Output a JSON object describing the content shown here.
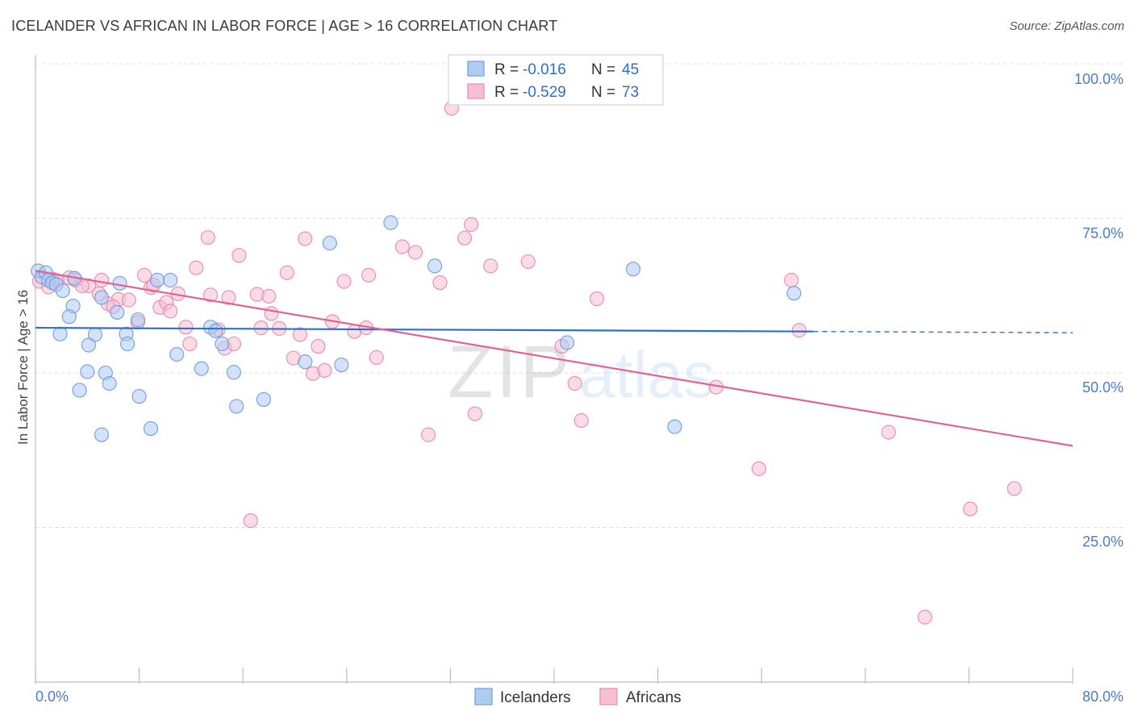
{
  "header": {
    "title": "ICELANDER VS AFRICAN IN LABOR FORCE | AGE > 16 CORRELATION CHART",
    "source": "Source: ZipAtlas.com"
  },
  "watermark": {
    "part1": "ZIP",
    "part2": "atlas"
  },
  "legend": {
    "rows": [
      {
        "r_label": "R =",
        "r_value": "-0.016",
        "n_label": "N =",
        "n_value": "45"
      },
      {
        "r_label": "R =",
        "r_value": "-0.529",
        "n_label": "N =",
        "n_value": "73"
      }
    ]
  },
  "bottom_legend": {
    "items": [
      "Icelanders",
      "Africans"
    ]
  },
  "colors": {
    "blue_fill": "#aecbf2",
    "blue_stroke": "#6f9ee0",
    "blue_line": "#2e6fcb",
    "pink_fill": "#f7bfd1",
    "pink_stroke": "#e98aaa",
    "pink_line": "#e06493",
    "tick_text": "#4a7ccc",
    "grid": "#dddddd"
  },
  "chart_data": {
    "type": "scatter",
    "title": "ICELANDER VS AFRICAN IN LABOR FORCE | AGE > 16 CORRELATION CHART",
    "xlabel": "",
    "ylabel": "In Labor Force | Age > 16",
    "xlim": [
      0,
      80
    ],
    "ylim": [
      0,
      100
    ],
    "x_tick_labels": [
      "0.0%",
      "80.0%"
    ],
    "y_ticks": [
      25,
      50,
      75,
      100
    ],
    "y_tick_labels": [
      "25.0%",
      "50.0%",
      "75.0%",
      "100.0%"
    ],
    "grid": true,
    "legend_position": "top-center",
    "series": [
      {
        "name": "Icelanders",
        "color": "#aecbf2",
        "r": -0.016,
        "n": 45,
        "points": [
          [
            0.2,
            66.5
          ],
          [
            0.5,
            65.5
          ],
          [
            0.8,
            66.2
          ],
          [
            1.0,
            65.0
          ],
          [
            1.3,
            64.6
          ],
          [
            1.6,
            64.3
          ],
          [
            2.1,
            63.3
          ],
          [
            2.9,
            60.8
          ],
          [
            2.6,
            59.1
          ],
          [
            1.9,
            56.3
          ],
          [
            4.6,
            56.2
          ],
          [
            4.1,
            54.5
          ],
          [
            5.1,
            62.2
          ],
          [
            4.0,
            50.2
          ],
          [
            3.4,
            47.2
          ],
          [
            5.4,
            50.0
          ],
          [
            5.7,
            48.3
          ],
          [
            5.1,
            40.0
          ],
          [
            6.3,
            59.8
          ],
          [
            7.0,
            56.3
          ],
          [
            7.1,
            54.7
          ],
          [
            7.9,
            58.6
          ],
          [
            8.0,
            46.2
          ],
          [
            8.9,
            41.0
          ],
          [
            9.4,
            65.0
          ],
          [
            10.4,
            65.0
          ],
          [
            10.9,
            53.0
          ],
          [
            12.8,
            50.7
          ],
          [
            13.5,
            57.4
          ],
          [
            13.9,
            56.8
          ],
          [
            14.4,
            54.7
          ],
          [
            15.3,
            50.1
          ],
          [
            15.5,
            44.6
          ],
          [
            17.6,
            45.7
          ],
          [
            20.8,
            51.8
          ],
          [
            22.7,
            71.0
          ],
          [
            23.6,
            51.3
          ],
          [
            27.4,
            74.3
          ],
          [
            30.8,
            67.3
          ],
          [
            41.0,
            54.9
          ],
          [
            46.1,
            66.8
          ],
          [
            49.3,
            41.3
          ],
          [
            58.5,
            62.9
          ],
          [
            6.5,
            64.5
          ],
          [
            3.0,
            65.3
          ]
        ]
      },
      {
        "name": "Africans",
        "color": "#f7bfd1",
        "r": -0.529,
        "n": 73,
        "points": [
          [
            0.3,
            64.8
          ],
          [
            1.3,
            65.2
          ],
          [
            1.7,
            64.9
          ],
          [
            2.6,
            65.4
          ],
          [
            3.1,
            65.0
          ],
          [
            4.1,
            64.1
          ],
          [
            4.9,
            62.8
          ],
          [
            5.6,
            61.2
          ],
          [
            6.4,
            61.9
          ],
          [
            7.2,
            61.8
          ],
          [
            7.9,
            58.2
          ],
          [
            8.4,
            65.8
          ],
          [
            8.9,
            63.8
          ],
          [
            9.6,
            60.6
          ],
          [
            10.1,
            61.4
          ],
          [
            10.4,
            60.0
          ],
          [
            11.0,
            62.8
          ],
          [
            11.6,
            57.4
          ],
          [
            11.9,
            54.7
          ],
          [
            12.4,
            67.0
          ],
          [
            13.3,
            71.9
          ],
          [
            13.5,
            62.6
          ],
          [
            14.1,
            57.0
          ],
          [
            14.6,
            54.0
          ],
          [
            14.9,
            62.2
          ],
          [
            15.3,
            54.7
          ],
          [
            15.7,
            69.0
          ],
          [
            16.6,
            26.1
          ],
          [
            17.1,
            62.7
          ],
          [
            17.4,
            57.3
          ],
          [
            18.0,
            62.4
          ],
          [
            18.2,
            59.6
          ],
          [
            18.8,
            57.2
          ],
          [
            19.4,
            66.2
          ],
          [
            19.9,
            52.4
          ],
          [
            20.4,
            56.2
          ],
          [
            20.8,
            71.7
          ],
          [
            21.4,
            49.9
          ],
          [
            21.8,
            54.3
          ],
          [
            22.3,
            50.4
          ],
          [
            22.9,
            58.3
          ],
          [
            23.8,
            64.8
          ],
          [
            24.6,
            56.7
          ],
          [
            25.5,
            57.3
          ],
          [
            25.7,
            65.8
          ],
          [
            26.3,
            52.5
          ],
          [
            28.3,
            70.4
          ],
          [
            29.3,
            69.5
          ],
          [
            30.3,
            40.0
          ],
          [
            31.2,
            64.6
          ],
          [
            32.1,
            92.8
          ],
          [
            33.1,
            71.8
          ],
          [
            33.6,
            74.0
          ],
          [
            33.9,
            43.4
          ],
          [
            35.1,
            67.3
          ],
          [
            38.0,
            68.0
          ],
          [
            40.6,
            54.3
          ],
          [
            41.6,
            48.3
          ],
          [
            42.1,
            42.3
          ],
          [
            43.3,
            62.0
          ],
          [
            52.5,
            47.7
          ],
          [
            55.8,
            34.5
          ],
          [
            58.3,
            65.0
          ],
          [
            58.9,
            56.9
          ],
          [
            65.8,
            40.4
          ],
          [
            68.6,
            10.5
          ],
          [
            72.1,
            28.0
          ],
          [
            75.5,
            31.3
          ],
          [
            3.6,
            64.1
          ],
          [
            5.1,
            65.0
          ],
          [
            6.0,
            60.7
          ],
          [
            9.1,
            64.2
          ],
          [
            1.0,
            63.9
          ]
        ]
      }
    ],
    "trend_lines": [
      {
        "series": "Icelanders",
        "x0": 0,
        "y0": 57.3,
        "x1": 60,
        "y1": 56.7,
        "dashed_to": 80,
        "dashed_y": 56.5
      },
      {
        "series": "Africans",
        "x0": 0,
        "y0": 66.5,
        "x1": 80,
        "y1": 38.2
      }
    ]
  }
}
